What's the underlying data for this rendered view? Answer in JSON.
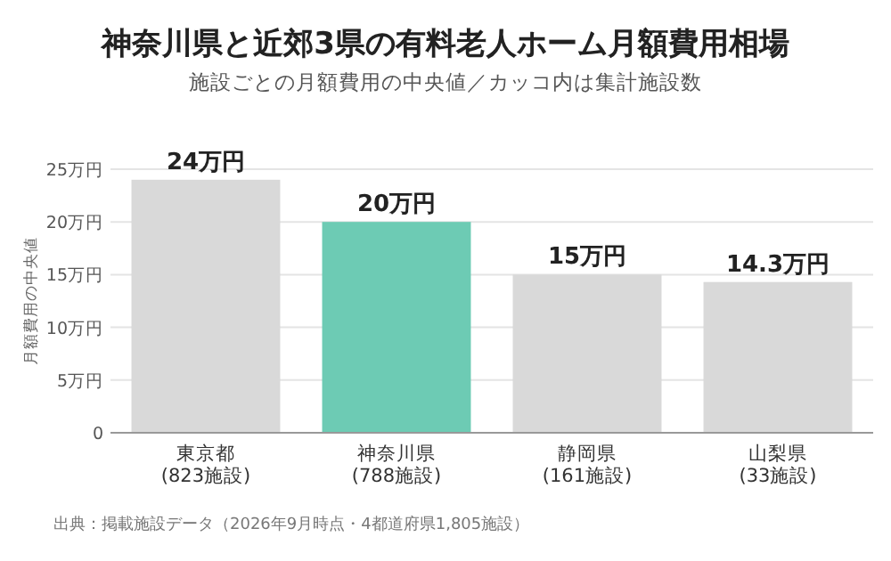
{
  "chart_data": {
    "type": "bar",
    "title": "神奈川県と近郊3県の有料老人ホーム月額費用相場",
    "subtitle": "施設ごとの月額費用の中央値／カッコ内は集計施設数",
    "ylabel": "月額費用の中央値",
    "categories": [
      "東京都\n(823施設)",
      "神奈川県\n(788施設)",
      "静岡県\n(161施設)",
      "山梨県\n(33施設)"
    ],
    "values": [
      24,
      20,
      15,
      14.3
    ],
    "colors": [
      "#d9d9d9",
      "#6dcbb4",
      "#d9d9d9",
      "#d9d9d9"
    ],
    "value_labels": [
      "24万円",
      "20万円",
      "15万円",
      "14.3万円"
    ],
    "ylim": [
      0,
      25
    ],
    "yticks": [
      {
        "value": 0,
        "label": "0"
      },
      {
        "value": 5,
        "label": "5万円"
      },
      {
        "value": 10,
        "label": "10万円"
      },
      {
        "value": 15,
        "label": "15万円"
      },
      {
        "value": 20,
        "label": "20万円"
      },
      {
        "value": 25,
        "label": "25万円"
      }
    ],
    "grid": "y",
    "annotations": [
      "出典：掲載施設データ（2026年9月時点・4都道府県1,805施設）"
    ]
  }
}
